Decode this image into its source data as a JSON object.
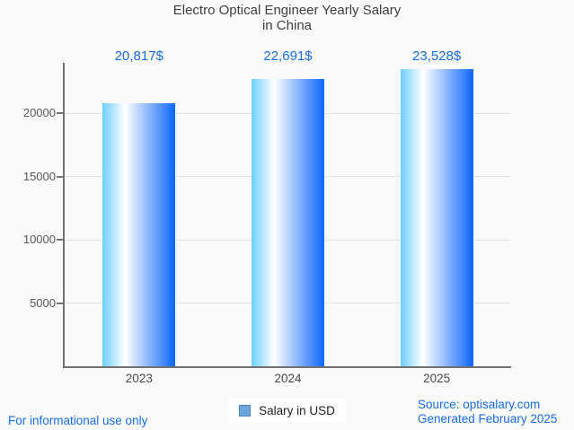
{
  "title": {
    "line1": "Electro Optical Engineer Yearly Salary",
    "line2": "in China"
  },
  "chart_data": {
    "type": "bar",
    "title": "Electro Optical Engineer Yearly Salary in China",
    "categories": [
      "2023",
      "2024",
      "2025"
    ],
    "series": [
      {
        "name": "Salary in USD",
        "values": [
          20817,
          22691,
          23528
        ]
      }
    ],
    "value_labels": [
      "20,817$",
      "22,691$",
      "23,528$"
    ],
    "xlabel": "",
    "ylabel": "",
    "ylim": [
      0,
      24000
    ],
    "yticks": [
      5000,
      10000,
      15000,
      20000
    ],
    "ytick_labels": [
      "5000",
      "10000",
      "15000",
      "20000"
    ],
    "grid": true,
    "legend_position": "bottom-center",
    "bar_gradient": [
      "#6ccfff",
      "#ffffff",
      "#0c66fb"
    ],
    "gradient_white_stop_pct": 31,
    "value_label_color": "#1a6de9"
  },
  "legend": {
    "label": "Salary in USD",
    "swatch_fill": "#6fa3db",
    "swatch_border": "#4c83c3"
  },
  "footer": {
    "left_note": "For informational use only",
    "source": "Source: optisalary.com",
    "generated": "Generated February 2025"
  },
  "colors": {
    "accent_blue": "#1a6de9",
    "title_text": "#3f3f3f",
    "axis_line": "#737373",
    "grid_line": "#e4e4e4",
    "tick_label": "#585858",
    "category_label": "#4a4a4a",
    "background": "#fafafa",
    "legend_box_bg": "#ffffff"
  }
}
